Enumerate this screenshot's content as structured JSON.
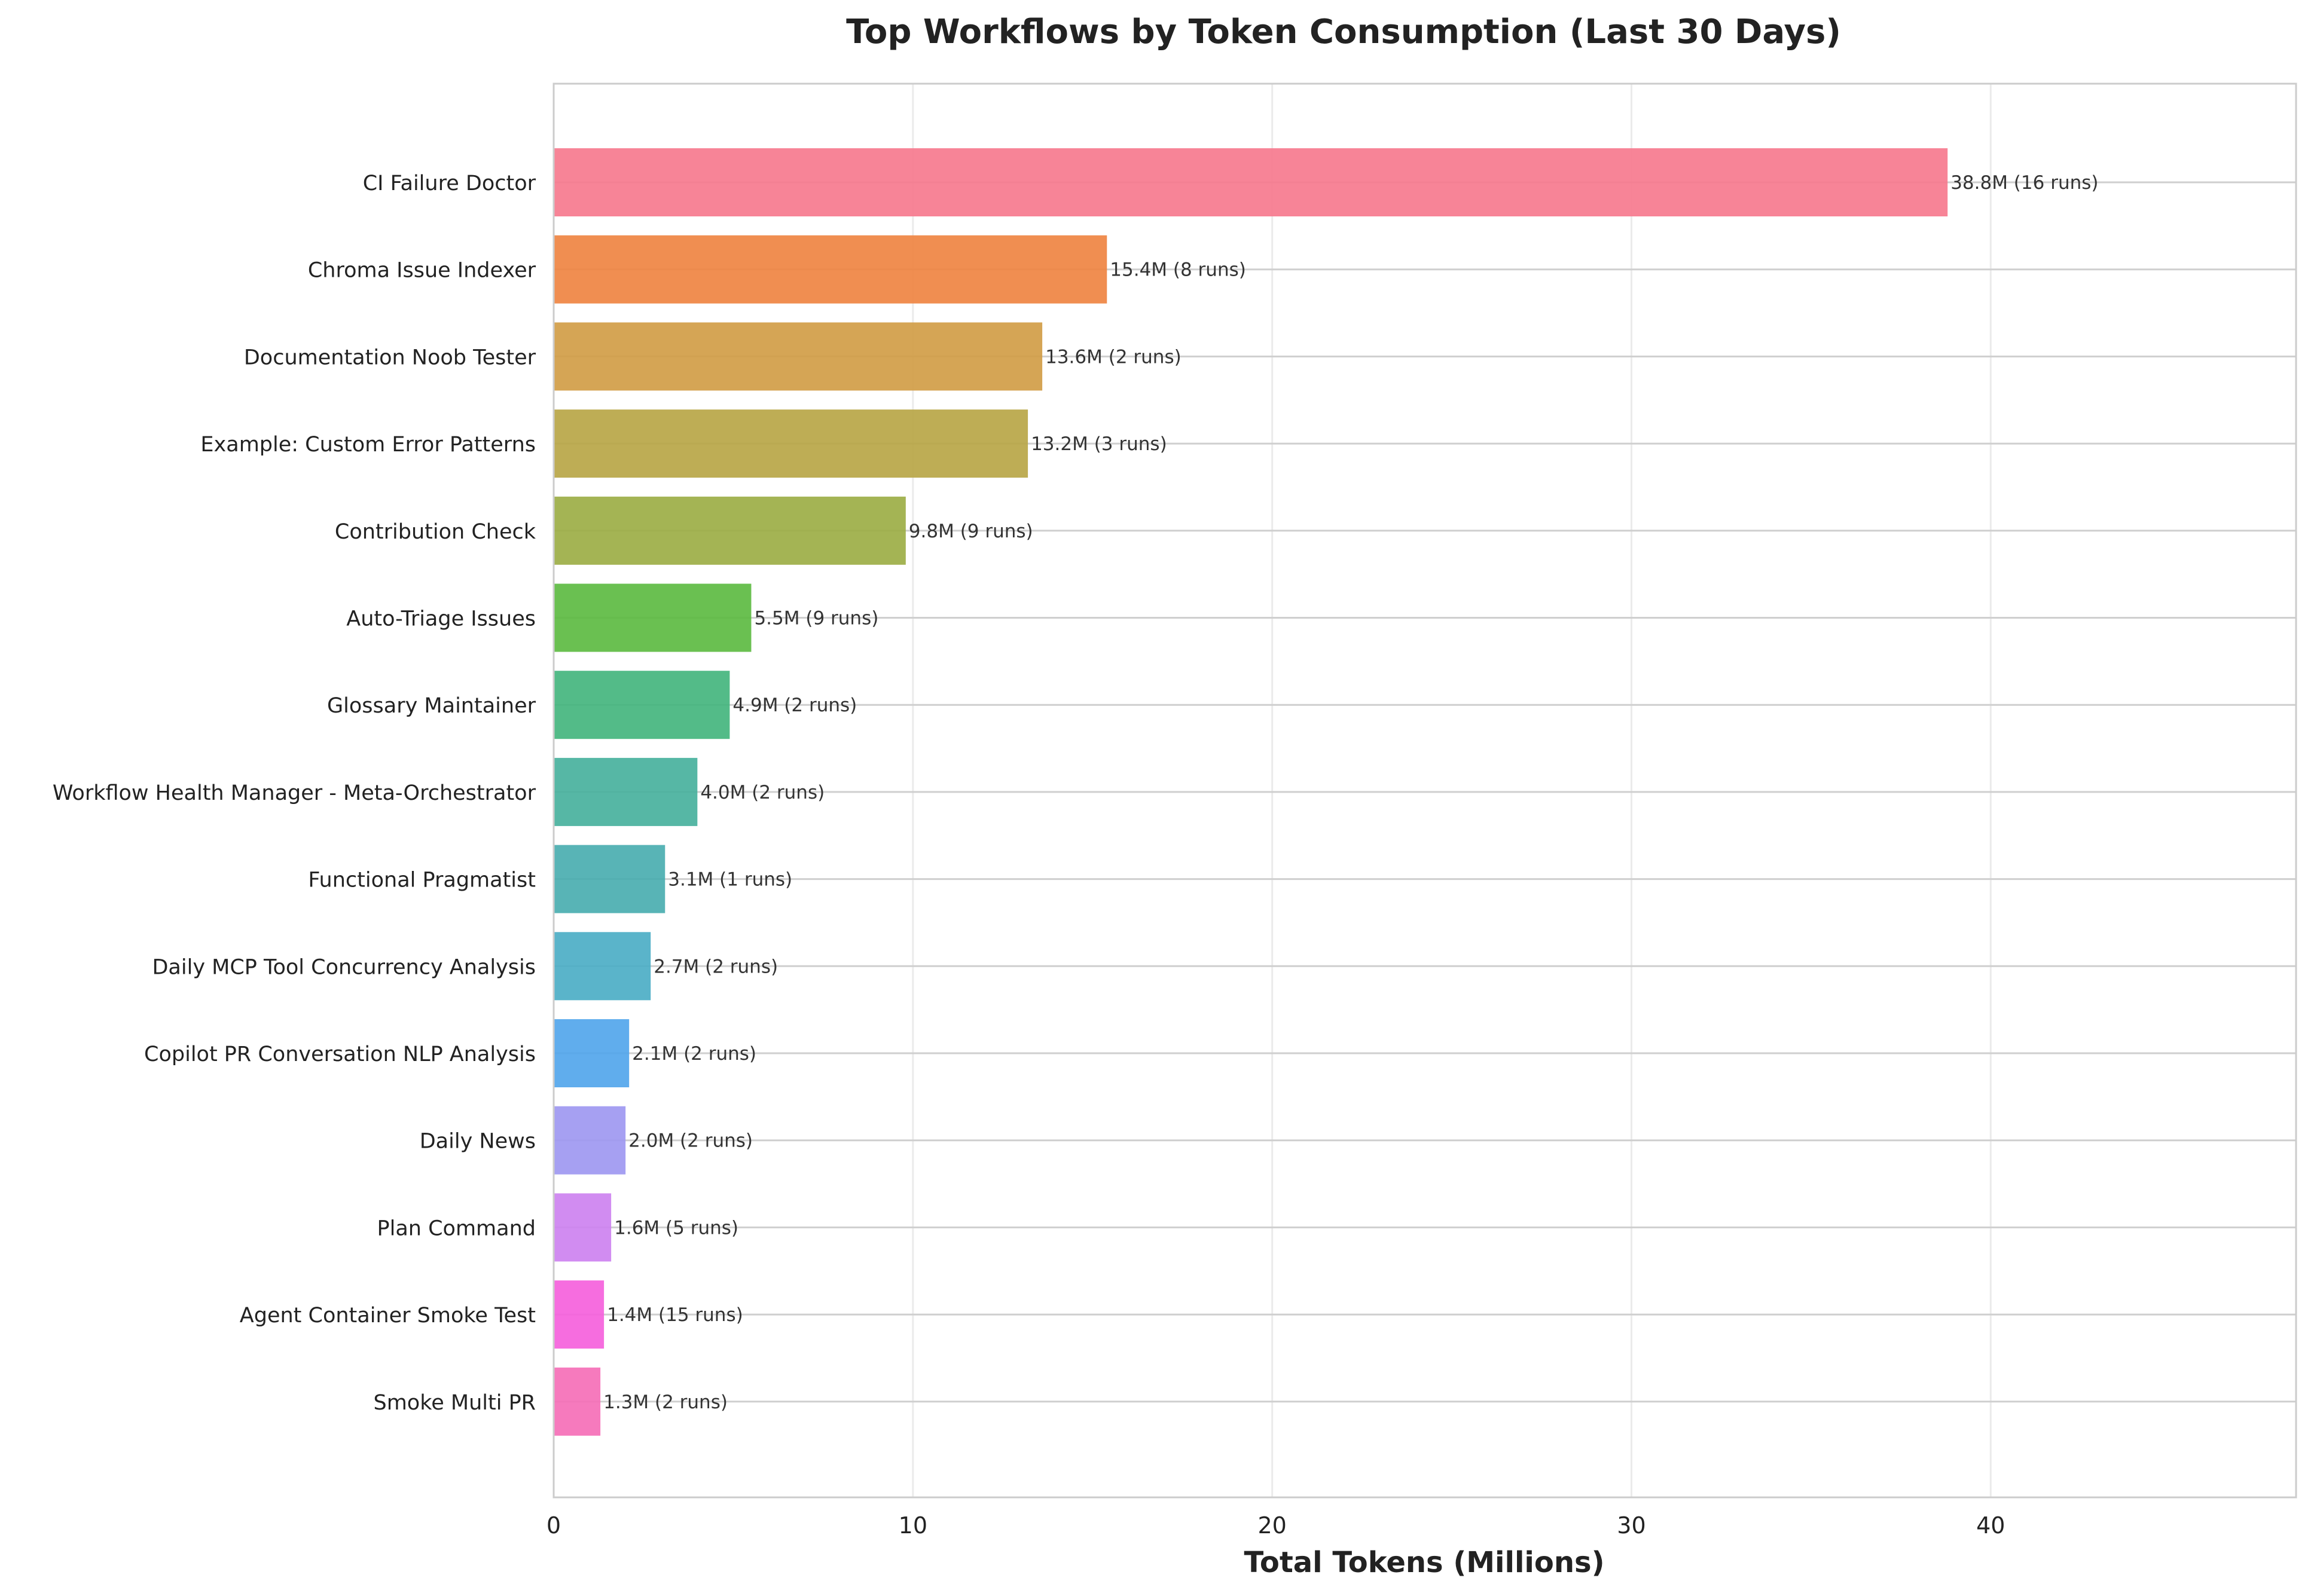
{
  "chart_data": {
    "type": "bar",
    "orientation": "horizontal",
    "title": "Top Workflows by Token Consumption (Last 30 Days)",
    "xlabel": "Total Tokens (Millions)",
    "ylabel": "",
    "xlim": [
      0,
      48.5
    ],
    "xticks": [
      0,
      10,
      20,
      30,
      40
    ],
    "grid": true,
    "categories": [
      "CI Failure Doctor",
      "Chroma Issue Indexer",
      "Documentation Noob Tester",
      "Example: Custom Error Patterns",
      "Contribution Check",
      "Auto-Triage Issues",
      "Glossary Maintainer",
      "Workflow Health Manager - Meta-Orchestrator",
      "Functional Pragmatist",
      "Daily MCP Tool Concurrency Analysis",
      "Copilot PR Conversation NLP Analysis",
      "Daily News",
      "Plan Command",
      "Agent Container Smoke Test",
      "Smoke Multi PR"
    ],
    "values": [
      38.8,
      15.4,
      13.6,
      13.2,
      9.8,
      5.5,
      4.9,
      4.0,
      3.1,
      2.7,
      2.1,
      2.0,
      1.6,
      1.4,
      1.3
    ],
    "data_labels": [
      "38.8M (16 runs)",
      "15.4M (8 runs)",
      "13.6M (2 runs)",
      "13.2M (3 runs)",
      "9.8M (9 runs)",
      "5.5M (9 runs)",
      "4.9M (2 runs)",
      "4.0M (2 runs)",
      "3.1M (1 runs)",
      "2.7M (2 runs)",
      "2.1M (2 runs)",
      "2.0M (2 runs)",
      "1.6M (5 runs)",
      "1.4M (15 runs)",
      "1.3M (2 runs)"
    ],
    "colors": [
      "#f67a8e",
      "#ef8442",
      "#d19d46",
      "#b9a646",
      "#9cae45",
      "#5dbb42",
      "#44b57e",
      "#48b19d",
      "#4aaeb0",
      "#4caec5",
      "#52a6ec",
      "#9e98f1",
      "#cd82f0",
      "#f561dc",
      "#f56fb7"
    ]
  }
}
